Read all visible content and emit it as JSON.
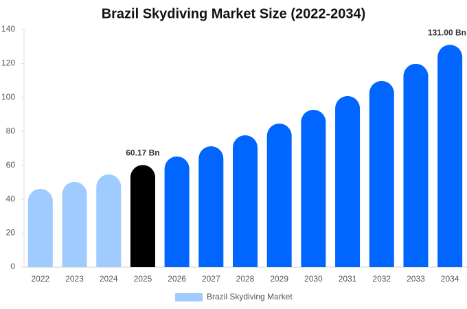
{
  "chart_data": {
    "type": "bar",
    "title": "Brazil Skydiving Market Size (2022-2034)",
    "categories": [
      "2022",
      "2023",
      "2024",
      "2025",
      "2026",
      "2027",
      "2028",
      "2029",
      "2030",
      "2031",
      "2032",
      "2033",
      "2034"
    ],
    "series": [
      {
        "name": "Brazil Skydiving Market",
        "color": "#a0cbff",
        "values": [
          46.1,
          50.2,
          54.6,
          60.17,
          65.2,
          71.2,
          77.7,
          84.6,
          92.7,
          100.8,
          109.7,
          119.8,
          131.0
        ],
        "value_labels": [
          null,
          null,
          null,
          "60.17 Bn",
          null,
          null,
          null,
          null,
          null,
          null,
          null,
          null,
          "131.00 Bn"
        ],
        "colors": [
          "#a0cbff",
          "#a0cbff",
          "#a0cbff",
          "#000000",
          "#0066ff",
          "#0066ff",
          "#0066ff",
          "#0066ff",
          "#0066ff",
          "#0066ff",
          "#0066ff",
          "#0066ff",
          "#0066ff"
        ]
      }
    ],
    "ylim": [
      0,
      140
    ],
    "yticks": [
      0,
      20,
      40,
      60,
      80,
      100,
      120,
      140
    ],
    "grid": false,
    "legend": "bottom"
  }
}
